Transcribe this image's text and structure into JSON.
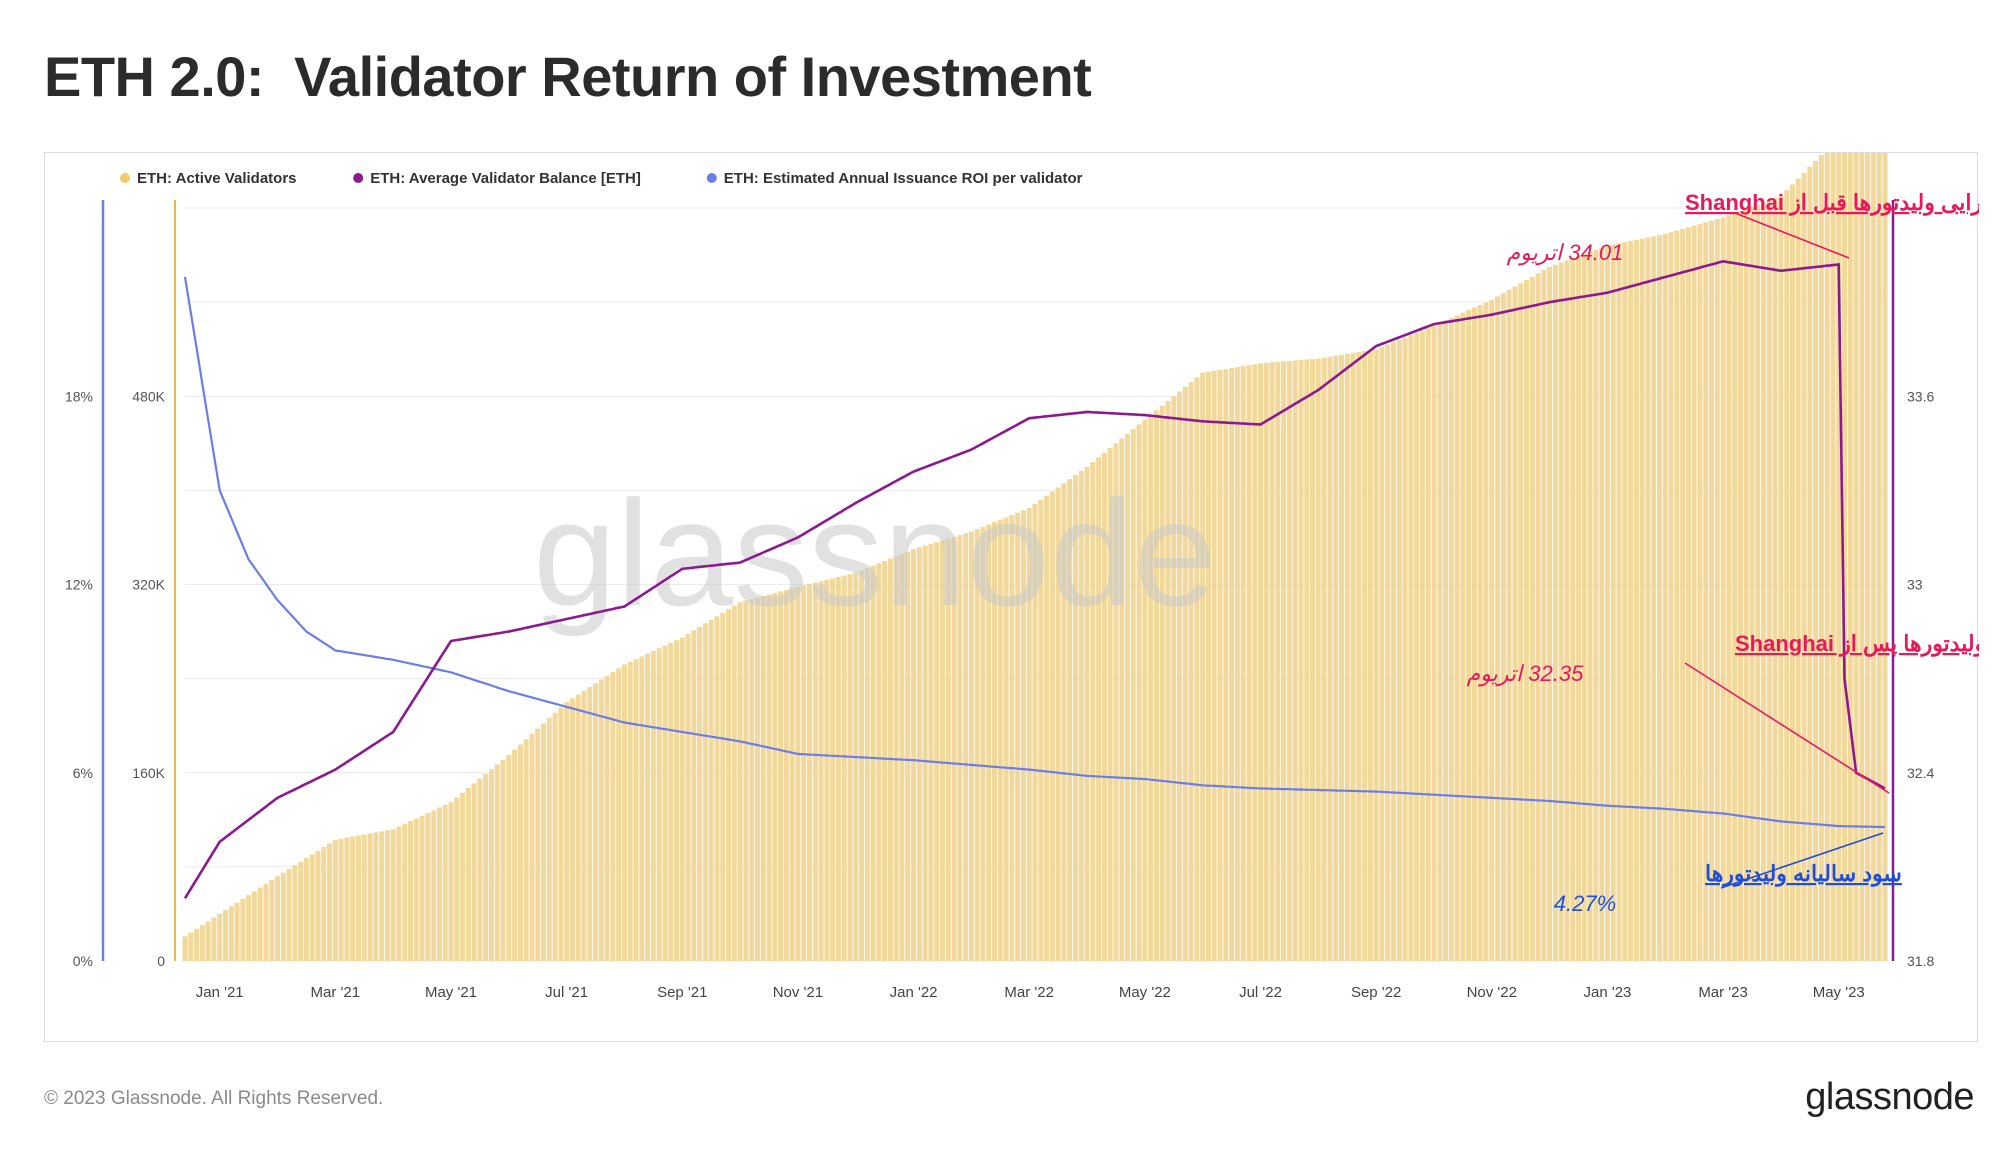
{
  "title": "ETH 2.0:  Validator Return of Investment",
  "footer": {
    "copyright": "© 2023 Glassnode. All Rights Reserved.",
    "logo": "glassnode"
  },
  "watermark": "glassnode",
  "chart_data": {
    "type": "bar+line",
    "legend": [
      {
        "label": "ETH: Active Validators",
        "color": "#f0cc6a"
      },
      {
        "label": "ETH: Average Validator Balance [ETH]",
        "color": "#8b1a8f"
      },
      {
        "label": "ETH: Estimated Annual Issuance ROI per validator",
        "color": "#6b7ee8"
      }
    ],
    "x_ticks": [
      "Jan '21",
      "Mar '21",
      "May '21",
      "Jul '21",
      "Sep '21",
      "Nov '21",
      "Jan '22",
      "Mar '22",
      "May '22",
      "Jul '22",
      "Sep '22",
      "Nov '22",
      "Jan '23",
      "Mar '23",
      "May '23"
    ],
    "x_range_months": [
      -0.6,
      28.8
    ],
    "axes": {
      "roi": {
        "ticks": [
          "0%",
          "6%",
          "12%",
          "18%"
        ],
        "range": [
          0,
          24
        ]
      },
      "validators": {
        "ticks": [
          "0",
          "160K",
          "320K",
          "480K"
        ],
        "range": [
          0,
          640000
        ]
      },
      "balance": {
        "ticks": [
          "31.8",
          "32.4",
          "33",
          "33.6"
        ],
        "range": [
          31.8,
          34.2
        ]
      }
    },
    "series": [
      {
        "name": "ETH: Active Validators",
        "type": "bar",
        "points": [
          [
            -0.6,
            21000
          ],
          [
            0,
            40000
          ],
          [
            1,
            72000
          ],
          [
            2,
            103000
          ],
          [
            3,
            112000
          ],
          [
            4,
            135000
          ],
          [
            5,
            175000
          ],
          [
            6,
            220000
          ],
          [
            7,
            252000
          ],
          [
            8,
            275000
          ],
          [
            9,
            305000
          ],
          [
            10,
            318000
          ],
          [
            11,
            330000
          ],
          [
            12,
            350000
          ],
          [
            13,
            365000
          ],
          [
            14,
            385000
          ],
          [
            15,
            420000
          ],
          [
            16,
            460000
          ],
          [
            17,
            500000
          ],
          [
            18,
            508000
          ],
          [
            19,
            512000
          ],
          [
            20,
            520000
          ],
          [
            21,
            540000
          ],
          [
            22,
            562000
          ],
          [
            23,
            590000
          ],
          [
            24,
            608000
          ],
          [
            25,
            618000
          ],
          [
            26,
            632000
          ],
          [
            27,
            650000
          ],
          [
            28,
            700000
          ],
          [
            28.3,
            695000
          ],
          [
            28.8,
            695000
          ]
        ]
      },
      {
        "name": "ETH: Average Validator Balance [ETH]",
        "type": "line",
        "points": [
          [
            -0.6,
            32.0
          ],
          [
            0,
            32.18
          ],
          [
            1,
            32.32
          ],
          [
            2,
            32.41
          ],
          [
            3,
            32.53
          ],
          [
            4,
            32.82
          ],
          [
            5,
            32.85
          ],
          [
            6,
            32.89
          ],
          [
            7,
            32.93
          ],
          [
            8,
            33.05
          ],
          [
            9,
            33.07
          ],
          [
            10,
            33.15
          ],
          [
            11,
            33.26
          ],
          [
            12,
            33.36
          ],
          [
            13,
            33.43
          ],
          [
            14,
            33.53
          ],
          [
            15,
            33.55
          ],
          [
            16,
            33.54
          ],
          [
            17,
            33.52
          ],
          [
            18,
            33.51
          ],
          [
            19,
            33.62
          ],
          [
            20,
            33.76
          ],
          [
            21,
            33.83
          ],
          [
            22,
            33.86
          ],
          [
            23,
            33.9
          ],
          [
            24,
            33.93
          ],
          [
            25,
            33.98
          ],
          [
            26,
            34.03
          ],
          [
            27,
            34.0
          ],
          [
            28,
            34.02
          ],
          [
            28.1,
            32.7
          ],
          [
            28.3,
            32.4
          ],
          [
            28.8,
            32.35
          ]
        ]
      },
      {
        "name": "ETH: Estimated Annual Issuance ROI per validator",
        "type": "line",
        "points": [
          [
            -0.6,
            21.8
          ],
          [
            0,
            15.0
          ],
          [
            0.5,
            12.8
          ],
          [
            1,
            11.5
          ],
          [
            1.5,
            10.5
          ],
          [
            2,
            9.9
          ],
          [
            3,
            9.6
          ],
          [
            4,
            9.2
          ],
          [
            5,
            8.6
          ],
          [
            6,
            8.1
          ],
          [
            7,
            7.6
          ],
          [
            8,
            7.3
          ],
          [
            9,
            7.0
          ],
          [
            10,
            6.6
          ],
          [
            11,
            6.5
          ],
          [
            12,
            6.4
          ],
          [
            13,
            6.25
          ],
          [
            14,
            6.1
          ],
          [
            15,
            5.9
          ],
          [
            16,
            5.8
          ],
          [
            17,
            5.6
          ],
          [
            18,
            5.5
          ],
          [
            19,
            5.45
          ],
          [
            20,
            5.4
          ],
          [
            21,
            5.3
          ],
          [
            22,
            5.2
          ],
          [
            23,
            5.1
          ],
          [
            24,
            4.95
          ],
          [
            25,
            4.85
          ],
          [
            26,
            4.7
          ],
          [
            27,
            4.45
          ],
          [
            28,
            4.3
          ],
          [
            28.8,
            4.27
          ]
        ]
      }
    ],
    "annotations": [
      {
        "label": "میانگین دارایی ولیدتورها قبل از Shanghai",
        "value": "34.01 اتریوم",
        "color": "#e8195a"
      },
      {
        "label": "میانگین دارایی ولیدتورها پس از Shanghai",
        "value": "32.35 اتریوم",
        "color": "#e8195a"
      },
      {
        "label": "سود سالیانه ولیدتورها",
        "value": "4.27%",
        "color": "#1f4fd8"
      }
    ]
  }
}
